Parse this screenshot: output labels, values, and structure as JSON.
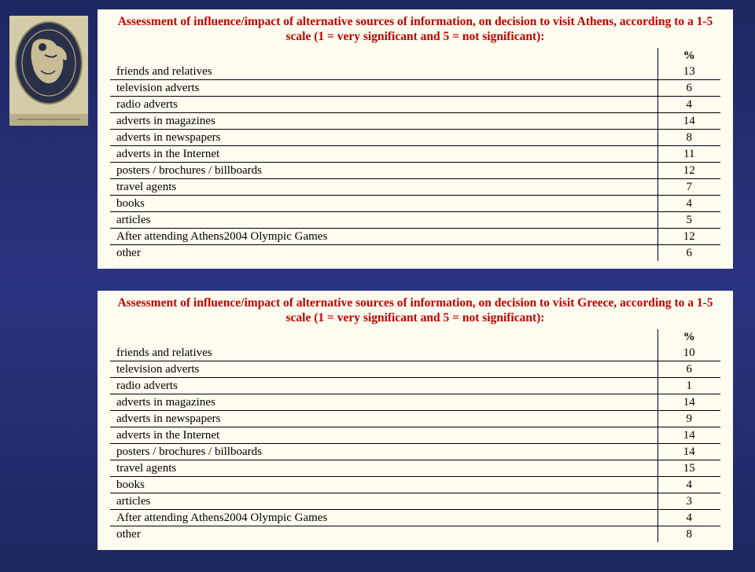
{
  "table1": {
    "title": "Assessment of influence/impact of alternative sources of information, on decision to visit Athens, according to a 1-5 scale (1 = very significant and 5 = not significant):",
    "header": "%",
    "rows": [
      {
        "label": "friends and relatives",
        "value": "13"
      },
      {
        "label": "television adverts",
        "value": "6"
      },
      {
        "label": "radio adverts",
        "value": "4"
      },
      {
        "label": "adverts in magazines",
        "value": "14"
      },
      {
        "label": "adverts in newspapers",
        "value": "8"
      },
      {
        "label": "adverts in the Internet",
        "value": "11"
      },
      {
        "label": "posters / brochures / billboards",
        "value": "12"
      },
      {
        "label": "travel agents",
        "value": "7"
      },
      {
        "label": "books",
        "value": "4"
      },
      {
        "label": "articles",
        "value": "5"
      },
      {
        "label": "After attending Athens2004 Olympic Games",
        "value": "12"
      },
      {
        "label": "other",
        "value": "6"
      }
    ]
  },
  "table2": {
    "title": "Assessment of influence/impact of alternative sources of information, on decision to visit Greece, according to a 1-5 scale (1 = very significant and 5 = not significant):",
    "header": "%",
    "rows": [
      {
        "label": "friends and relatives",
        "value": "10"
      },
      {
        "label": "television adverts",
        "value": "6"
      },
      {
        "label": "radio adverts",
        "value": "1"
      },
      {
        "label": "adverts in magazines",
        "value": "14"
      },
      {
        "label": "adverts in newspapers",
        "value": "9"
      },
      {
        "label": "adverts in the Internet",
        "value": "14"
      },
      {
        "label": "posters / brochures / billboards",
        "value": "14"
      },
      {
        "label": "travel agents",
        "value": "15"
      },
      {
        "label": "books",
        "value": "4"
      },
      {
        "label": "articles",
        "value": "3"
      },
      {
        "label": "After attending Athens2004 Olympic Games",
        "value": "4"
      },
      {
        "label": "other",
        "value": "8"
      }
    ]
  }
}
